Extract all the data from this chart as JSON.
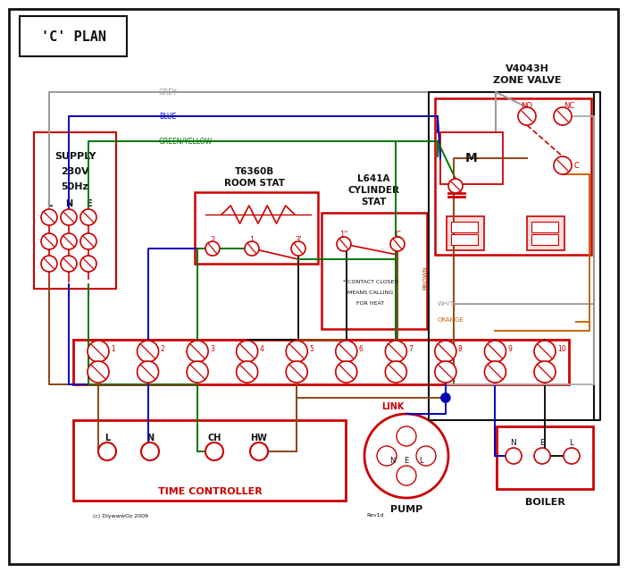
{
  "title": "'C' PLAN",
  "bg_color": "#ffffff",
  "red": "#cc0000",
  "blue": "#0000bb",
  "green": "#007700",
  "brown": "#8B4513",
  "grey": "#999999",
  "orange": "#cc6600",
  "black": "#111111",
  "supply_text": [
    "SUPPLY",
    "230V",
    "50Hz"
  ],
  "lne_labels": [
    "L",
    "N",
    "E"
  ],
  "zone_valve_title": [
    "V4043H",
    "ZONE VALVE"
  ],
  "room_stat_title": [
    "T6360B",
    "ROOM STAT"
  ],
  "cyl_stat_title": [
    "L641A",
    "CYLINDER",
    "STAT"
  ],
  "time_ctrl_title": "TIME CONTROLLER",
  "pump_title": "PUMP",
  "boiler_title": "BOILER",
  "terminal_labels": [
    "1",
    "2",
    "3",
    "4",
    "5",
    "6",
    "7",
    "8",
    "9",
    "10"
  ],
  "link_label": "LINK",
  "tc_labels": [
    "L",
    "N",
    "CH",
    "HW"
  ],
  "nel_pump": [
    "N",
    "E",
    "L"
  ],
  "nel_boiler": [
    "N",
    "E",
    "L"
  ],
  "grey_label": "GREY",
  "blue_label": "BLUE",
  "gy_label": "GREEN/YELLOW",
  "brown_label": "BROWN",
  "white_label": "WHITE",
  "orange_label": "ORANGE",
  "contact_note": [
    "* CONTACT CLOSED",
    "MEANS CALLING",
    "FOR HEAT"
  ],
  "copyright": "(c) DiywwwOz 2009",
  "rev": "Rev1d"
}
